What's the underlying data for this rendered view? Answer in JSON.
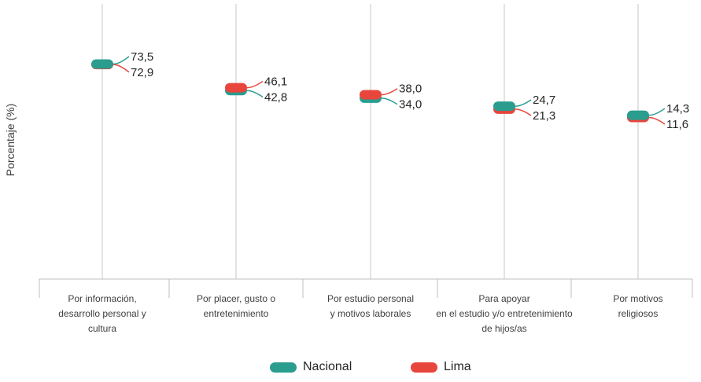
{
  "chart_data": {
    "type": "scatter",
    "ylabel": "Porcentaje (%)",
    "categories": [
      [
        "Por información,",
        "desarrollo personal y",
        "cultura"
      ],
      [
        "Por placer, gusto o",
        "entretenimiento"
      ],
      [
        "Por estudio personal",
        "y motivos laborales"
      ],
      [
        "Para apoyar",
        "en el estudio y/o entretenimiento",
        "de hijos/as"
      ],
      [
        "Por motivos",
        "religiosos"
      ]
    ],
    "series": [
      {
        "name": "Nacional",
        "color": "#2a9d8f",
        "values": [
          73.5,
          42.8,
          34.0,
          24.7,
          14.3
        ],
        "labels": [
          "73,5",
          "42,8",
          "34,0",
          "24,7",
          "14,3"
        ]
      },
      {
        "name": "Lima",
        "color": "#e8453c",
        "values": [
          72.9,
          46.1,
          38.0,
          21.3,
          11.6
        ],
        "labels": [
          "72,9",
          "46,1",
          "38,0",
          "21,3",
          "11,6"
        ]
      }
    ],
    "ylim": [
      0,
      80
    ],
    "grid": false,
    "legend_position": "bottom"
  }
}
